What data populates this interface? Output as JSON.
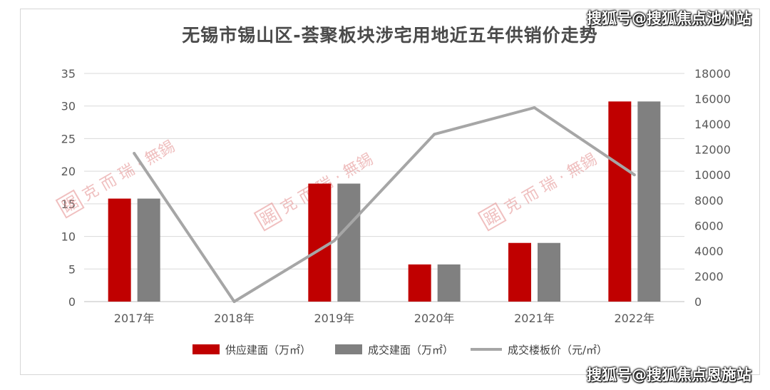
{
  "watermark": {
    "top": "搜狐号@搜狐焦点池州站",
    "bottom": "搜狐号@搜狐焦点恩施站"
  },
  "brand_watermark": {
    "text": "克 而 瑞 · 無錫",
    "logo_glyph": "踞"
  },
  "colors": {
    "supply": "#c00000",
    "deal": "#808080",
    "price": "#a6a6a6",
    "grid": "#d9d9d9"
  },
  "chart_data": {
    "type": "bar",
    "title": "无锡市锡山区-荟聚板块涉宅用地近五年供销价走势",
    "categories": [
      "2017年",
      "2018年",
      "2019年",
      "2020年",
      "2021年",
      "2022年"
    ],
    "y_left": {
      "ylim": [
        0,
        35
      ],
      "ticks": [
        "0",
        "5",
        "10",
        "15",
        "20",
        "25",
        "30",
        "35"
      ]
    },
    "y_right": {
      "ylim": [
        0,
        18000
      ],
      "ticks": [
        "0",
        "2000",
        "4000",
        "6000",
        "8000",
        "10000",
        "12000",
        "14000",
        "16000",
        "18000"
      ]
    },
    "series": [
      {
        "name": "供应建面（万㎡）",
        "type": "bar",
        "axis": "left",
        "values": [
          15.8,
          0,
          18.1,
          5.7,
          9.0,
          30.7
        ]
      },
      {
        "name": "成交建面（万㎡）",
        "type": "bar",
        "axis": "left",
        "values": [
          15.8,
          0,
          18.1,
          5.7,
          9.0,
          30.7
        ]
      },
      {
        "name": "成交楼板价（元/㎡）",
        "type": "line",
        "axis": "right",
        "values": [
          11700,
          0,
          4800,
          13200,
          15300,
          10000
        ]
      }
    ],
    "grid": true,
    "legend": "bottom"
  }
}
